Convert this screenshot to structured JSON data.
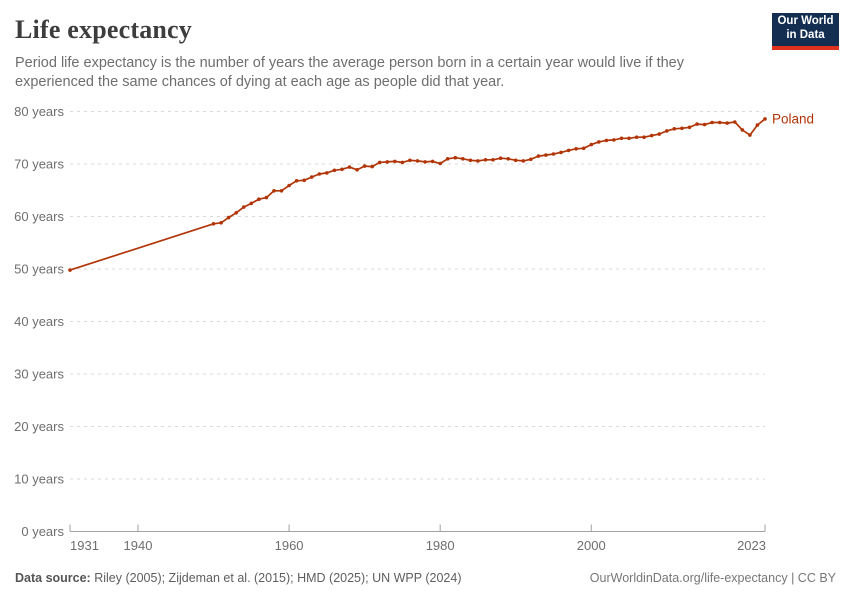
{
  "header": {
    "title": "Life expectancy",
    "subtitle": "Period life expectancy is the number of years the average person born in a certain year would live if they experienced the same chances of dying at each age as people did that year.",
    "logo": {
      "line1": "Our World",
      "line2": "in Data",
      "bg_color": "#132e51",
      "bar_color": "#e0311d"
    }
  },
  "chart_data": {
    "type": "line",
    "title": "Life expectancy",
    "xlabel": "",
    "ylabel": "",
    "xlim": [
      1931,
      2023
    ],
    "ylim": [
      0,
      80
    ],
    "x_ticks": [
      1931,
      1940,
      1960,
      1980,
      2000,
      2023
    ],
    "y_ticks": [
      0,
      10,
      20,
      30,
      40,
      50,
      60,
      70,
      80
    ],
    "y_tick_suffix": " years",
    "grid": "dashed-horizontal",
    "legend_position": "end-of-line-label",
    "axis_color": "#a1a1a1",
    "grid_color": "#dadada",
    "tick_label_color": "#6e6e6e",
    "series": [
      {
        "name": "Poland",
        "color": "#b13507",
        "points": [
          [
            1931,
            49.8
          ],
          [
            1950,
            58.6
          ],
          [
            1951,
            58.8
          ],
          [
            1952,
            59.8
          ],
          [
            1953,
            60.7
          ],
          [
            1954,
            61.8
          ],
          [
            1955,
            62.5
          ],
          [
            1956,
            63.3
          ],
          [
            1957,
            63.6
          ],
          [
            1958,
            64.9
          ],
          [
            1959,
            64.9
          ],
          [
            1960,
            65.9
          ],
          [
            1961,
            66.8
          ],
          [
            1962,
            66.9
          ],
          [
            1963,
            67.5
          ],
          [
            1964,
            68.1
          ],
          [
            1965,
            68.3
          ],
          [
            1966,
            68.8
          ],
          [
            1967,
            69.0
          ],
          [
            1968,
            69.4
          ],
          [
            1969,
            68.9
          ],
          [
            1970,
            69.6
          ],
          [
            1971,
            69.5
          ],
          [
            1972,
            70.3
          ],
          [
            1973,
            70.4
          ],
          [
            1974,
            70.5
          ],
          [
            1975,
            70.3
          ],
          [
            1976,
            70.7
          ],
          [
            1977,
            70.6
          ],
          [
            1978,
            70.4
          ],
          [
            1979,
            70.5
          ],
          [
            1980,
            70.1
          ],
          [
            1981,
            71.0
          ],
          [
            1982,
            71.2
          ],
          [
            1983,
            71.0
          ],
          [
            1984,
            70.7
          ],
          [
            1985,
            70.6
          ],
          [
            1986,
            70.8
          ],
          [
            1987,
            70.8
          ],
          [
            1988,
            71.1
          ],
          [
            1989,
            71.0
          ],
          [
            1990,
            70.7
          ],
          [
            1991,
            70.6
          ],
          [
            1992,
            70.9
          ],
          [
            1993,
            71.5
          ],
          [
            1994,
            71.7
          ],
          [
            1995,
            71.9
          ],
          [
            1996,
            72.2
          ],
          [
            1997,
            72.6
          ],
          [
            1998,
            72.9
          ],
          [
            1999,
            73.0
          ],
          [
            2000,
            73.7
          ],
          [
            2001,
            74.2
          ],
          [
            2002,
            74.5
          ],
          [
            2003,
            74.6
          ],
          [
            2004,
            74.9
          ],
          [
            2005,
            74.9
          ],
          [
            2006,
            75.1
          ],
          [
            2007,
            75.1
          ],
          [
            2008,
            75.4
          ],
          [
            2009,
            75.7
          ],
          [
            2010,
            76.3
          ],
          [
            2011,
            76.7
          ],
          [
            2012,
            76.8
          ],
          [
            2013,
            77.0
          ],
          [
            2014,
            77.6
          ],
          [
            2015,
            77.5
          ],
          [
            2016,
            77.9
          ],
          [
            2017,
            77.9
          ],
          [
            2018,
            77.8
          ],
          [
            2019,
            78.0
          ],
          [
            2020,
            76.5
          ],
          [
            2021,
            75.5
          ],
          [
            2022,
            77.4
          ],
          [
            2023,
            78.6
          ]
        ]
      }
    ]
  },
  "footer": {
    "source_label": "Data source:",
    "source_text": "Riley (2005); Zijdeman et al. (2015); HMD (2025); UN WPP (2024)",
    "link_text": "OurWorldinData.org/life-expectancy",
    "separator": "|",
    "license_text": "CC BY"
  }
}
